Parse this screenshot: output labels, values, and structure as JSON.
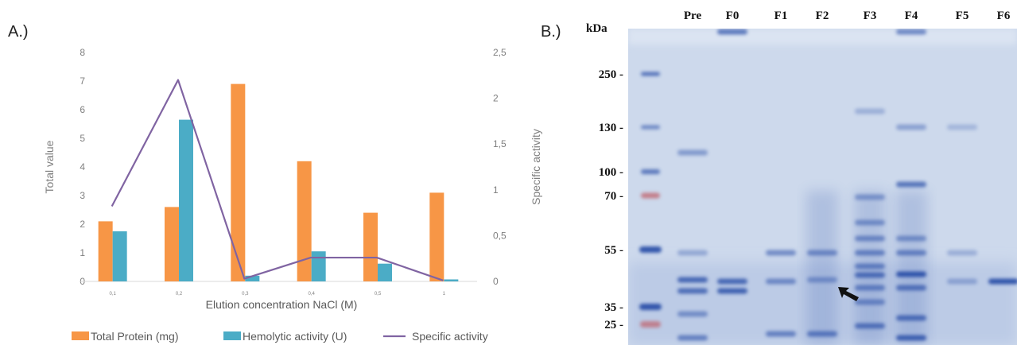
{
  "panel_a_label": "A.)",
  "panel_b_label": "B.)",
  "colors": {
    "total_protein": "#F79646",
    "hemolytic_activity": "#4BACC6",
    "specific_activity": "#8064A2",
    "axis_text": "#7f7f7f",
    "gel_background": "#cdd9ec",
    "gel_band": "#2a4fa8",
    "ladder_red": "#c0606a"
  },
  "chart_data": {
    "type": "bar",
    "title": "",
    "xlabel": "Elution concentration NaCl (M)",
    "ylabel": "Total value",
    "y2label": "Specific activity",
    "categories": [
      "0,1",
      "0,2",
      "0,3",
      "0,4",
      "0,5",
      "1"
    ],
    "ylim": [
      0,
      8
    ],
    "y2lim": [
      0,
      2.5
    ],
    "yticks": [
      "0",
      "1",
      "2",
      "3",
      "4",
      "5",
      "6",
      "7",
      "8"
    ],
    "y2ticks": [
      "0",
      "0,5",
      "1",
      "1,5",
      "2",
      "2,5"
    ],
    "grid": false,
    "legend_position": "bottom",
    "series": [
      {
        "name": "Total Protein (mg)",
        "type": "bar",
        "axis": "left",
        "values": [
          2.1,
          2.6,
          6.9,
          4.2,
          2.4,
          3.1
        ]
      },
      {
        "name": "Hemolytic activity (U)",
        "type": "bar",
        "axis": "left",
        "values": [
          1.75,
          5.65,
          0.2,
          1.05,
          0.62,
          0.07
        ]
      },
      {
        "name": "Specific activity",
        "type": "line",
        "axis": "right",
        "values": [
          0.82,
          2.2,
          0.03,
          0.26,
          0.26,
          0.01
        ]
      }
    ]
  },
  "gel": {
    "kda_label": "kDa",
    "lanes": [
      "Pre",
      "F0",
      "F1",
      "F2",
      "F3",
      "F4",
      "F5",
      "F6"
    ],
    "markers": [
      {
        "label": "250 -",
        "kda": 250
      },
      {
        "label": "130 -",
        "kda": 130
      },
      {
        "label": "100 -",
        "kda": 100
      },
      {
        "label": "70 -",
        "kda": 70
      },
      {
        "label": "55 -",
        "kda": 55
      },
      {
        "label": "35 -",
        "kda": 35
      },
      {
        "label": "25 -",
        "kda": 25
      }
    ]
  }
}
